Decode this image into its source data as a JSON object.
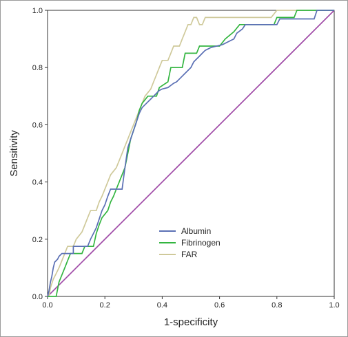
{
  "chart_data": {
    "type": "line",
    "xlabel": "1-specificity",
    "ylabel": "Sensitivity",
    "xlim": [
      0.0,
      1.0
    ],
    "ylim": [
      0.0,
      1.0
    ],
    "x_ticks": [
      "0.0",
      "0.2",
      "0.4",
      "0.6",
      "0.8",
      "1.0"
    ],
    "y_ticks": [
      "0.0",
      "0.2",
      "0.4",
      "0.6",
      "0.8",
      "1.0"
    ],
    "grid": false,
    "legend_position": "lower-center",
    "series": [
      {
        "name": "Albumin",
        "color": "#5a6fb4",
        "points": [
          [
            0.0,
            0.0
          ],
          [
            0.005,
            0.02
          ],
          [
            0.01,
            0.05
          ],
          [
            0.015,
            0.07
          ],
          [
            0.02,
            0.1
          ],
          [
            0.025,
            0.12
          ],
          [
            0.035,
            0.13
          ],
          [
            0.04,
            0.14
          ],
          [
            0.05,
            0.15
          ],
          [
            0.09,
            0.15
          ],
          [
            0.09,
            0.175
          ],
          [
            0.14,
            0.175
          ],
          [
            0.15,
            0.2
          ],
          [
            0.16,
            0.22
          ],
          [
            0.17,
            0.24
          ],
          [
            0.18,
            0.27
          ],
          [
            0.19,
            0.3
          ],
          [
            0.2,
            0.32
          ],
          [
            0.21,
            0.35
          ],
          [
            0.22,
            0.375
          ],
          [
            0.26,
            0.375
          ],
          [
            0.27,
            0.45
          ],
          [
            0.28,
            0.52
          ],
          [
            0.29,
            0.55
          ],
          [
            0.3,
            0.58
          ],
          [
            0.31,
            0.61
          ],
          [
            0.32,
            0.64
          ],
          [
            0.33,
            0.66
          ],
          [
            0.34,
            0.67
          ],
          [
            0.36,
            0.69
          ],
          [
            0.37,
            0.7
          ],
          [
            0.39,
            0.72
          ],
          [
            0.4,
            0.725
          ],
          [
            0.42,
            0.73
          ],
          [
            0.44,
            0.745
          ],
          [
            0.45,
            0.75
          ],
          [
            0.46,
            0.76
          ],
          [
            0.48,
            0.78
          ],
          [
            0.5,
            0.8
          ],
          [
            0.51,
            0.82
          ],
          [
            0.53,
            0.84
          ],
          [
            0.54,
            0.85
          ],
          [
            0.55,
            0.86
          ],
          [
            0.57,
            0.87
          ],
          [
            0.61,
            0.88
          ],
          [
            0.63,
            0.89
          ],
          [
            0.65,
            0.9
          ],
          [
            0.66,
            0.92
          ],
          [
            0.68,
            0.935
          ],
          [
            0.69,
            0.95
          ],
          [
            0.8,
            0.95
          ],
          [
            0.81,
            0.97
          ],
          [
            0.93,
            0.97
          ],
          [
            0.94,
            1.0
          ],
          [
            1.0,
            1.0
          ]
        ]
      },
      {
        "name": "Fibrinogen",
        "color": "#33b540",
        "points": [
          [
            0.0,
            0.0
          ],
          [
            0.03,
            0.0
          ],
          [
            0.04,
            0.05
          ],
          [
            0.06,
            0.1
          ],
          [
            0.07,
            0.125
          ],
          [
            0.08,
            0.15
          ],
          [
            0.12,
            0.15
          ],
          [
            0.13,
            0.175
          ],
          [
            0.16,
            0.175
          ],
          [
            0.17,
            0.22
          ],
          [
            0.18,
            0.25
          ],
          [
            0.19,
            0.275
          ],
          [
            0.21,
            0.3
          ],
          [
            0.22,
            0.33
          ],
          [
            0.23,
            0.35
          ],
          [
            0.24,
            0.375
          ],
          [
            0.25,
            0.4
          ],
          [
            0.27,
            0.45
          ],
          [
            0.28,
            0.5
          ],
          [
            0.29,
            0.55
          ],
          [
            0.3,
            0.58
          ],
          [
            0.31,
            0.61
          ],
          [
            0.32,
            0.65
          ],
          [
            0.33,
            0.675
          ],
          [
            0.35,
            0.7
          ],
          [
            0.38,
            0.7
          ],
          [
            0.39,
            0.73
          ],
          [
            0.42,
            0.75
          ],
          [
            0.43,
            0.8
          ],
          [
            0.47,
            0.8
          ],
          [
            0.48,
            0.85
          ],
          [
            0.52,
            0.85
          ],
          [
            0.53,
            0.875
          ],
          [
            0.6,
            0.875
          ],
          [
            0.62,
            0.9
          ],
          [
            0.65,
            0.925
          ],
          [
            0.67,
            0.95
          ],
          [
            0.79,
            0.95
          ],
          [
            0.8,
            0.975
          ],
          [
            0.86,
            0.975
          ],
          [
            0.87,
            1.0
          ],
          [
            1.0,
            1.0
          ]
        ]
      },
      {
        "name": "FAR",
        "color": "#cfc99a",
        "points": [
          [
            0.0,
            0.0
          ],
          [
            0.005,
            0.0
          ],
          [
            0.01,
            0.03
          ],
          [
            0.02,
            0.06
          ],
          [
            0.03,
            0.08
          ],
          [
            0.04,
            0.1
          ],
          [
            0.05,
            0.125
          ],
          [
            0.06,
            0.15
          ],
          [
            0.07,
            0.175
          ],
          [
            0.09,
            0.175
          ],
          [
            0.1,
            0.2
          ],
          [
            0.12,
            0.225
          ],
          [
            0.13,
            0.25
          ],
          [
            0.14,
            0.275
          ],
          [
            0.15,
            0.3
          ],
          [
            0.17,
            0.3
          ],
          [
            0.18,
            0.33
          ],
          [
            0.19,
            0.35
          ],
          [
            0.2,
            0.375
          ],
          [
            0.21,
            0.4
          ],
          [
            0.22,
            0.425
          ],
          [
            0.24,
            0.45
          ],
          [
            0.25,
            0.475
          ],
          [
            0.26,
            0.5
          ],
          [
            0.27,
            0.525
          ],
          [
            0.28,
            0.55
          ],
          [
            0.29,
            0.575
          ],
          [
            0.3,
            0.6
          ],
          [
            0.31,
            0.625
          ],
          [
            0.32,
            0.65
          ],
          [
            0.33,
            0.675
          ],
          [
            0.34,
            0.7
          ],
          [
            0.36,
            0.725
          ],
          [
            0.37,
            0.75
          ],
          [
            0.38,
            0.775
          ],
          [
            0.39,
            0.8
          ],
          [
            0.4,
            0.825
          ],
          [
            0.42,
            0.825
          ],
          [
            0.43,
            0.85
          ],
          [
            0.44,
            0.875
          ],
          [
            0.46,
            0.875
          ],
          [
            0.47,
            0.9
          ],
          [
            0.48,
            0.925
          ],
          [
            0.49,
            0.95
          ],
          [
            0.5,
            0.95
          ],
          [
            0.51,
            0.975
          ],
          [
            0.52,
            0.975
          ],
          [
            0.53,
            0.95
          ],
          [
            0.54,
            0.95
          ],
          [
            0.55,
            0.975
          ],
          [
            0.78,
            0.975
          ],
          [
            0.8,
            1.0
          ],
          [
            1.0,
            1.0
          ]
        ]
      },
      {
        "name": "",
        "color": "#a04ca8",
        "points": [
          [
            0.0,
            0.0
          ],
          [
            1.0,
            1.0
          ]
        ]
      }
    ]
  }
}
